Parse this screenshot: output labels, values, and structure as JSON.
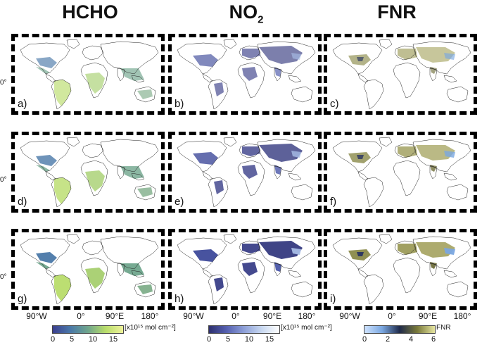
{
  "titles": {
    "hcho": "HCHO",
    "no2_main": "NO",
    "no2_sub": "2",
    "fnr": "FNR"
  },
  "panel_labels": [
    "a)",
    "b)",
    "c)",
    "d)",
    "e)",
    "f)",
    "g)",
    "h)",
    "i)"
  ],
  "lat_label": "0°",
  "lon_ticks": [
    "90°W",
    "0°",
    "90°E",
    "180°"
  ],
  "colorbars": {
    "hcho": {
      "unit": "[x10¹⁵ mol cm⁻²]",
      "ticks": [
        "0",
        "5",
        "10",
        "15"
      ],
      "colors": [
        "#3b3f8f",
        "#4a78a8",
        "#6fa58c",
        "#b8dc6a",
        "#eef29a"
      ]
    },
    "no2": {
      "unit": "[x10¹⁵ mol cm⁻²]",
      "ticks": [
        "0",
        "5",
        "10",
        "15"
      ],
      "colors": [
        "#2d2f6e",
        "#5560b0",
        "#8ea0d8",
        "#c8d8f0",
        "#ffffff"
      ]
    },
    "fnr": {
      "unit": "FNR",
      "ticks": [
        "0",
        "2",
        "4",
        "6"
      ],
      "colors": [
        "#cfe3ff",
        "#7aa7e0",
        "#1f2a4a",
        "#7a7a3a",
        "#e6e5a0"
      ]
    }
  }
}
